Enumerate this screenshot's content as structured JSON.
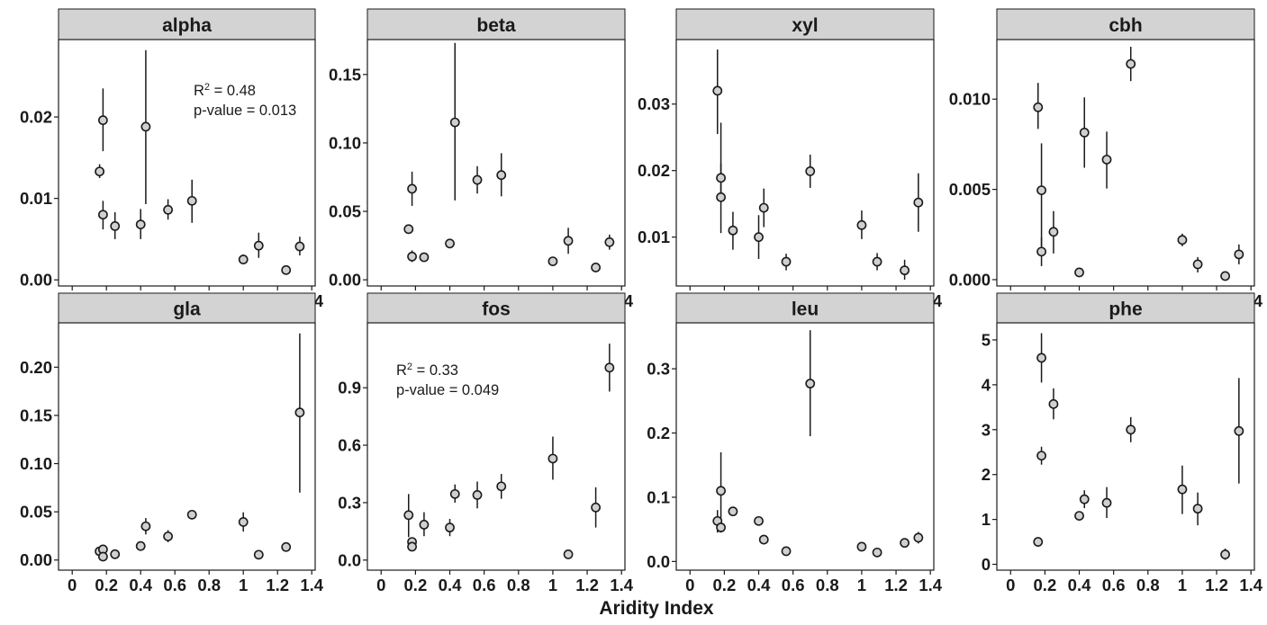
{
  "figure": {
    "x_axis_title": "Aridity Index",
    "x_tick_labels": [
      "0",
      "0.2",
      "0.4",
      "0.6",
      "0.8",
      "1",
      "1.2",
      "1.4"
    ]
  },
  "chart_data": [
    {
      "type": "scatter",
      "title": "alpha",
      "xlabel": "Aridity Index",
      "ylabel": "",
      "xlim": [
        -0.08,
        1.42
      ],
      "ylim": [
        -0.00075,
        0.0295
      ],
      "yticks": [
        0,
        0.01,
        0.02
      ],
      "ytick_labels": [
        "0.00",
        "0.01",
        "0.02"
      ],
      "annotation": [
        "R",
        "2",
        " = 0.48",
        "p-value = 0.013"
      ],
      "points": [
        {
          "x": 0.16,
          "y": 0.0133,
          "lo": 0.0125,
          "hi": 0.0142
        },
        {
          "x": 0.18,
          "y": 0.0196,
          "lo": 0.0158,
          "hi": 0.0235
        },
        {
          "x": 0.18,
          "y": 0.008,
          "lo": 0.0062,
          "hi": 0.0097
        },
        {
          "x": 0.25,
          "y": 0.0066,
          "lo": 0.005,
          "hi": 0.0083
        },
        {
          "x": 0.4,
          "y": 0.0068,
          "lo": 0.005,
          "hi": 0.0087
        },
        {
          "x": 0.43,
          "y": 0.0188,
          "lo": 0.0093,
          "hi": 0.0282
        },
        {
          "x": 0.56,
          "y": 0.0086,
          "lo": 0.0074,
          "hi": 0.0099
        },
        {
          "x": 0.7,
          "y": 0.0097,
          "lo": 0.007,
          "hi": 0.0123
        },
        {
          "x": 1.0,
          "y": 0.0025,
          "lo": 0.002,
          "hi": 0.0031
        },
        {
          "x": 1.09,
          "y": 0.0042,
          "lo": 0.0027,
          "hi": 0.0058
        },
        {
          "x": 1.25,
          "y": 0.0012,
          "lo": 0.001,
          "hi": 0.0014
        },
        {
          "x": 1.33,
          "y": 0.0041,
          "lo": 0.003,
          "hi": 0.0053
        }
      ]
    },
    {
      "type": "scatter",
      "title": "beta",
      "xlabel": "Aridity Index",
      "ylabel": "",
      "xlim": [
        -0.08,
        1.42
      ],
      "ylim": [
        -0.0045,
        0.1755
      ],
      "yticks": [
        0,
        0.05,
        0.1,
        0.15
      ],
      "ytick_labels": [
        "0.00",
        "0.05",
        "0.10",
        "0.15"
      ],
      "points": [
        {
          "x": 0.16,
          "y": 0.037,
          "lo": 0.035,
          "hi": 0.0395
        },
        {
          "x": 0.18,
          "y": 0.0665,
          "lo": 0.054,
          "hi": 0.079
        },
        {
          "x": 0.18,
          "y": 0.017,
          "lo": 0.013,
          "hi": 0.0215
        },
        {
          "x": 0.25,
          "y": 0.0165,
          "lo": 0.015,
          "hi": 0.018
        },
        {
          "x": 0.4,
          "y": 0.0265,
          "lo": 0.0245,
          "hi": 0.0285
        },
        {
          "x": 0.43,
          "y": 0.115,
          "lo": 0.058,
          "hi": 0.173
        },
        {
          "x": 0.56,
          "y": 0.073,
          "lo": 0.063,
          "hi": 0.083
        },
        {
          "x": 0.7,
          "y": 0.0765,
          "lo": 0.061,
          "hi": 0.0925
        },
        {
          "x": 1.0,
          "y": 0.0135,
          "lo": 0.011,
          "hi": 0.016
        },
        {
          "x": 1.09,
          "y": 0.0285,
          "lo": 0.019,
          "hi": 0.038
        },
        {
          "x": 1.25,
          "y": 0.009,
          "lo": 0.0075,
          "hi": 0.011
        },
        {
          "x": 1.33,
          "y": 0.0275,
          "lo": 0.022,
          "hi": 0.033
        }
      ]
    },
    {
      "type": "scatter",
      "title": "xyl",
      "xlabel": "Aridity Index",
      "ylabel": "",
      "xlim": [
        -0.08,
        1.42
      ],
      "ylim": [
        0.00265,
        0.0397
      ],
      "yticks": [
        0.01,
        0.02,
        0.03
      ],
      "ytick_labels": [
        "0.01",
        "0.02",
        "0.03"
      ],
      "points": [
        {
          "x": 0.16,
          "y": 0.032,
          "lo": 0.0255,
          "hi": 0.0382
        },
        {
          "x": 0.18,
          "y": 0.0189,
          "lo": 0.0167,
          "hi": 0.0211
        },
        {
          "x": 0.18,
          "y": 0.016,
          "lo": 0.0106,
          "hi": 0.0272
        },
        {
          "x": 0.25,
          "y": 0.011,
          "lo": 0.0081,
          "hi": 0.0138
        },
        {
          "x": 0.4,
          "y": 0.01,
          "lo": 0.0067,
          "hi": 0.0133
        },
        {
          "x": 0.43,
          "y": 0.0144,
          "lo": 0.0115,
          "hi": 0.0173
        },
        {
          "x": 0.56,
          "y": 0.0063,
          "lo": 0.005,
          "hi": 0.0075
        },
        {
          "x": 0.7,
          "y": 0.0199,
          "lo": 0.0174,
          "hi": 0.0224
        },
        {
          "x": 1.0,
          "y": 0.0118,
          "lo": 0.0097,
          "hi": 0.014
        },
        {
          "x": 1.09,
          "y": 0.0063,
          "lo": 0.005,
          "hi": 0.0076
        },
        {
          "x": 1.25,
          "y": 0.005,
          "lo": 0.0036,
          "hi": 0.0066
        },
        {
          "x": 1.33,
          "y": 0.0152,
          "lo": 0.0108,
          "hi": 0.0196
        }
      ]
    },
    {
      "type": "scatter",
      "title": "cbh",
      "xlabel": "Aridity Index",
      "ylabel": "",
      "xlim": [
        -0.08,
        1.42
      ],
      "ylim": [
        -0.00035,
        0.0133
      ],
      "yticks": [
        0,
        0.005,
        0.01
      ],
      "ytick_labels": [
        "0.000",
        "0.005",
        "0.010"
      ],
      "points": [
        {
          "x": 0.16,
          "y": 0.00955,
          "lo": 0.00835,
          "hi": 0.0109
        },
        {
          "x": 0.18,
          "y": 0.00495,
          "lo": 0.00185,
          "hi": 0.00755
        },
        {
          "x": 0.18,
          "y": 0.00155,
          "lo": 0.00075,
          "hi": 0.00235
        },
        {
          "x": 0.25,
          "y": 0.00265,
          "lo": 0.00145,
          "hi": 0.0038
        },
        {
          "x": 0.4,
          "y": 0.0004,
          "lo": 0.0003,
          "hi": 0.0005
        },
        {
          "x": 0.43,
          "y": 0.00815,
          "lo": 0.0062,
          "hi": 0.0101
        },
        {
          "x": 0.56,
          "y": 0.00665,
          "lo": 0.00505,
          "hi": 0.0082
        },
        {
          "x": 0.7,
          "y": 0.01195,
          "lo": 0.011,
          "hi": 0.0129
        },
        {
          "x": 1.0,
          "y": 0.0022,
          "lo": 0.00185,
          "hi": 0.00255
        },
        {
          "x": 1.09,
          "y": 0.00085,
          "lo": 0.0004,
          "hi": 0.00125
        },
        {
          "x": 1.25,
          "y": 0.0002,
          "lo": 0.0001,
          "hi": 0.0003
        },
        {
          "x": 1.33,
          "y": 0.0014,
          "lo": 0.00085,
          "hi": 0.00195
        }
      ]
    },
    {
      "type": "scatter",
      "title": "gla",
      "xlabel": "Aridity Index",
      "ylabel": "",
      "xlim": [
        -0.08,
        1.42
      ],
      "ylim": [
        -0.0105,
        0.246
      ],
      "yticks": [
        0,
        0.05,
        0.1,
        0.15,
        0.2
      ],
      "ytick_labels": [
        "0.00",
        "0.05",
        "0.10",
        "0.15",
        "0.20"
      ],
      "points": [
        {
          "x": 0.16,
          "y": 0.009,
          "lo": 0.007,
          "hi": 0.011
        },
        {
          "x": 0.18,
          "y": 0.011,
          "lo": 0.009,
          "hi": 0.013
        },
        {
          "x": 0.18,
          "y": 0.0035,
          "lo": 0.0025,
          "hi": 0.0045
        },
        {
          "x": 0.25,
          "y": 0.006,
          "lo": 0.0045,
          "hi": 0.0075
        },
        {
          "x": 0.4,
          "y": 0.0145,
          "lo": 0.012,
          "hi": 0.017
        },
        {
          "x": 0.43,
          "y": 0.035,
          "lo": 0.0265,
          "hi": 0.0435
        },
        {
          "x": 0.56,
          "y": 0.0245,
          "lo": 0.0185,
          "hi": 0.031
        },
        {
          "x": 0.7,
          "y": 0.047,
          "lo": 0.043,
          "hi": 0.051
        },
        {
          "x": 1.0,
          "y": 0.0395,
          "lo": 0.0295,
          "hi": 0.0495
        },
        {
          "x": 1.09,
          "y": 0.0055,
          "lo": 0.004,
          "hi": 0.007
        },
        {
          "x": 1.25,
          "y": 0.0135,
          "lo": 0.011,
          "hi": 0.016
        },
        {
          "x": 1.33,
          "y": 0.153,
          "lo": 0.07,
          "hi": 0.235
        }
      ]
    },
    {
      "type": "scatter",
      "title": "fos",
      "xlabel": "Aridity Index",
      "ylabel": "",
      "xlim": [
        -0.08,
        1.42
      ],
      "ylim": [
        -0.0525,
        1.239
      ],
      "yticks": [
        0,
        0.3,
        0.6,
        0.9
      ],
      "ytick_labels": [
        "0.0",
        "0.3",
        "0.6",
        "0.9"
      ],
      "annotation": [
        "R",
        "2",
        " = 0.33",
        "p-value = 0.049"
      ],
      "points": [
        {
          "x": 0.16,
          "y": 0.235,
          "lo": 0.12,
          "hi": 0.345
        },
        {
          "x": 0.18,
          "y": 0.095,
          "lo": 0.075,
          "hi": 0.115
        },
        {
          "x": 0.18,
          "y": 0.07,
          "lo": 0.055,
          "hi": 0.085
        },
        {
          "x": 0.25,
          "y": 0.185,
          "lo": 0.125,
          "hi": 0.25
        },
        {
          "x": 0.4,
          "y": 0.17,
          "lo": 0.125,
          "hi": 0.215
        },
        {
          "x": 0.43,
          "y": 0.345,
          "lo": 0.3,
          "hi": 0.395
        },
        {
          "x": 0.56,
          "y": 0.34,
          "lo": 0.27,
          "hi": 0.41
        },
        {
          "x": 0.7,
          "y": 0.385,
          "lo": 0.32,
          "hi": 0.45
        },
        {
          "x": 1.0,
          "y": 0.53,
          "lo": 0.42,
          "hi": 0.645
        },
        {
          "x": 1.09,
          "y": 0.03,
          "lo": 0.02,
          "hi": 0.04
        },
        {
          "x": 1.25,
          "y": 0.275,
          "lo": 0.17,
          "hi": 0.38
        },
        {
          "x": 1.33,
          "y": 1.005,
          "lo": 0.88,
          "hi": 1.13
        }
      ]
    },
    {
      "type": "scatter",
      "title": "leu",
      "xlabel": "Aridity Index",
      "ylabel": "",
      "xlim": [
        -0.08,
        1.42
      ],
      "ylim": [
        -0.0135,
        0.3715
      ],
      "yticks": [
        0,
        0.1,
        0.2,
        0.3
      ],
      "ytick_labels": [
        "0.0",
        "0.1",
        "0.2",
        "0.3"
      ],
      "points": [
        {
          "x": 0.16,
          "y": 0.063,
          "lo": 0.045,
          "hi": 0.08
        },
        {
          "x": 0.18,
          "y": 0.11,
          "lo": 0.05,
          "hi": 0.17
        },
        {
          "x": 0.18,
          "y": 0.053,
          "lo": 0.045,
          "hi": 0.061
        },
        {
          "x": 0.25,
          "y": 0.078,
          "lo": 0.072,
          "hi": 0.084
        },
        {
          "x": 0.4,
          "y": 0.063,
          "lo": 0.057,
          "hi": 0.069
        },
        {
          "x": 0.43,
          "y": 0.034,
          "lo": 0.028,
          "hi": 0.04
        },
        {
          "x": 0.56,
          "y": 0.016,
          "lo": 0.013,
          "hi": 0.019
        },
        {
          "x": 0.7,
          "y": 0.277,
          "lo": 0.195,
          "hi": 0.36
        },
        {
          "x": 1.0,
          "y": 0.023,
          "lo": 0.019,
          "hi": 0.027
        },
        {
          "x": 1.09,
          "y": 0.014,
          "lo": 0.011,
          "hi": 0.017
        },
        {
          "x": 1.25,
          "y": 0.029,
          "lo": 0.024,
          "hi": 0.034
        },
        {
          "x": 1.33,
          "y": 0.037,
          "lo": 0.028,
          "hi": 0.046
        }
      ]
    },
    {
      "type": "scatter",
      "title": "phe",
      "xlabel": "Aridity Index",
      "ylabel": "",
      "xlim": [
        -0.08,
        1.42
      ],
      "ylim": [
        -0.13,
        5.38
      ],
      "yticks": [
        0,
        1,
        2,
        3,
        4,
        5
      ],
      "ytick_labels": [
        "0",
        "1",
        "2",
        "3",
        "4",
        "5"
      ],
      "points": [
        {
          "x": 0.16,
          "y": 0.5,
          "lo": 0.45,
          "hi": 0.55
        },
        {
          "x": 0.18,
          "y": 4.6,
          "lo": 4.05,
          "hi": 5.15
        },
        {
          "x": 0.18,
          "y": 2.42,
          "lo": 2.22,
          "hi": 2.62
        },
        {
          "x": 0.25,
          "y": 3.57,
          "lo": 3.23,
          "hi": 3.92
        },
        {
          "x": 0.4,
          "y": 1.08,
          "lo": 1.03,
          "hi": 1.13
        },
        {
          "x": 0.43,
          "y": 1.45,
          "lo": 1.25,
          "hi": 1.65
        },
        {
          "x": 0.56,
          "y": 1.37,
          "lo": 1.03,
          "hi": 1.72
        },
        {
          "x": 0.7,
          "y": 3.0,
          "lo": 2.72,
          "hi": 3.28
        },
        {
          "x": 1.0,
          "y": 1.67,
          "lo": 1.12,
          "hi": 2.2
        },
        {
          "x": 1.09,
          "y": 1.24,
          "lo": 0.87,
          "hi": 1.6
        },
        {
          "x": 1.25,
          "y": 0.22,
          "lo": 0.1,
          "hi": 0.35
        },
        {
          "x": 1.33,
          "y": 2.97,
          "lo": 1.8,
          "hi": 4.15
        }
      ]
    }
  ]
}
